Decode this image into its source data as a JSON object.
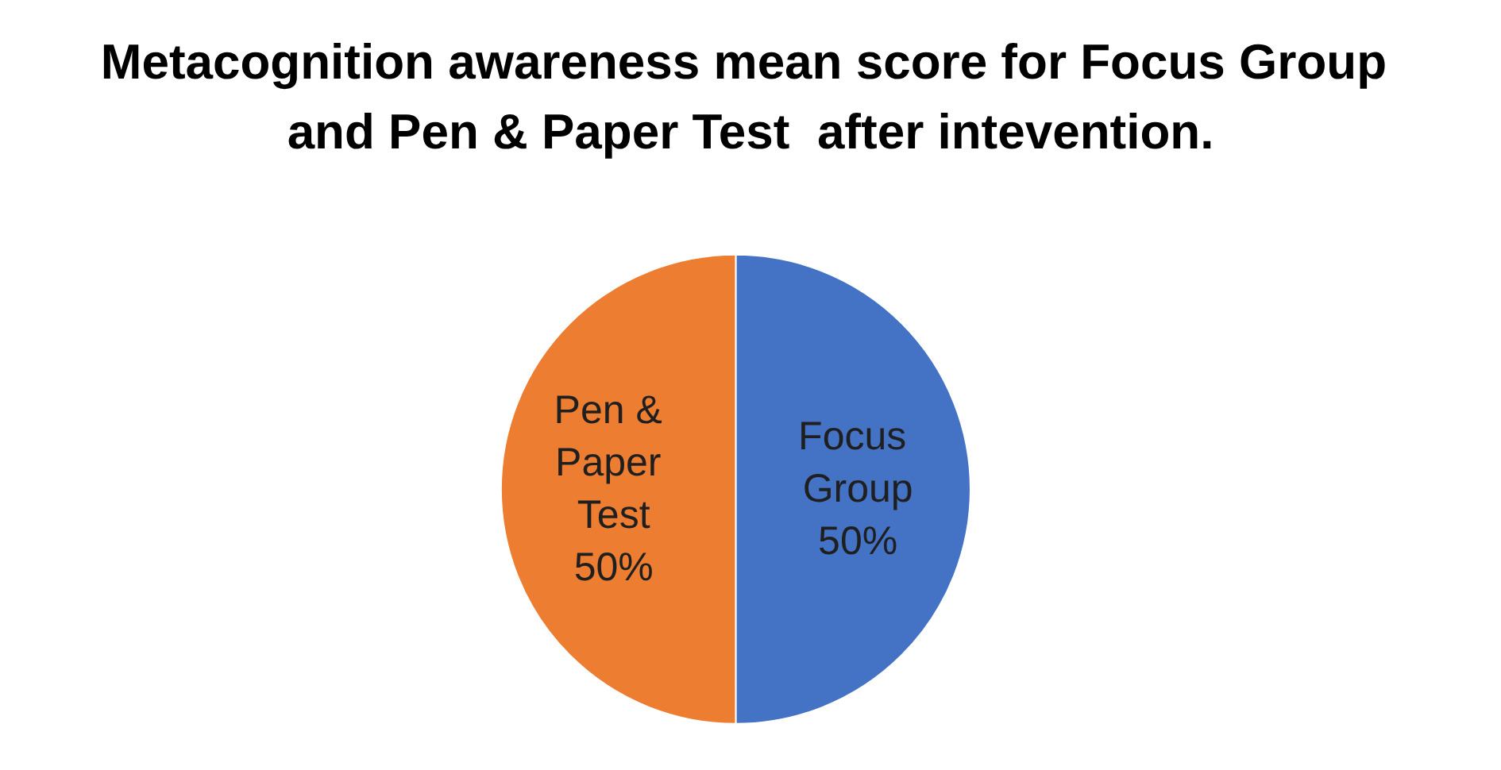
{
  "chart_data": {
    "type": "pie",
    "title": "Metacognition awareness mean score for Focus Group and Pen & Paper Test  after intevention.",
    "categories": [
      "Focus Group",
      "Pen & Paper Test"
    ],
    "values": [
      50,
      50
    ],
    "colors": [
      "#4472c4",
      "#ed7d31"
    ],
    "value_labels": [
      "50%",
      "50%"
    ],
    "legend": false
  }
}
